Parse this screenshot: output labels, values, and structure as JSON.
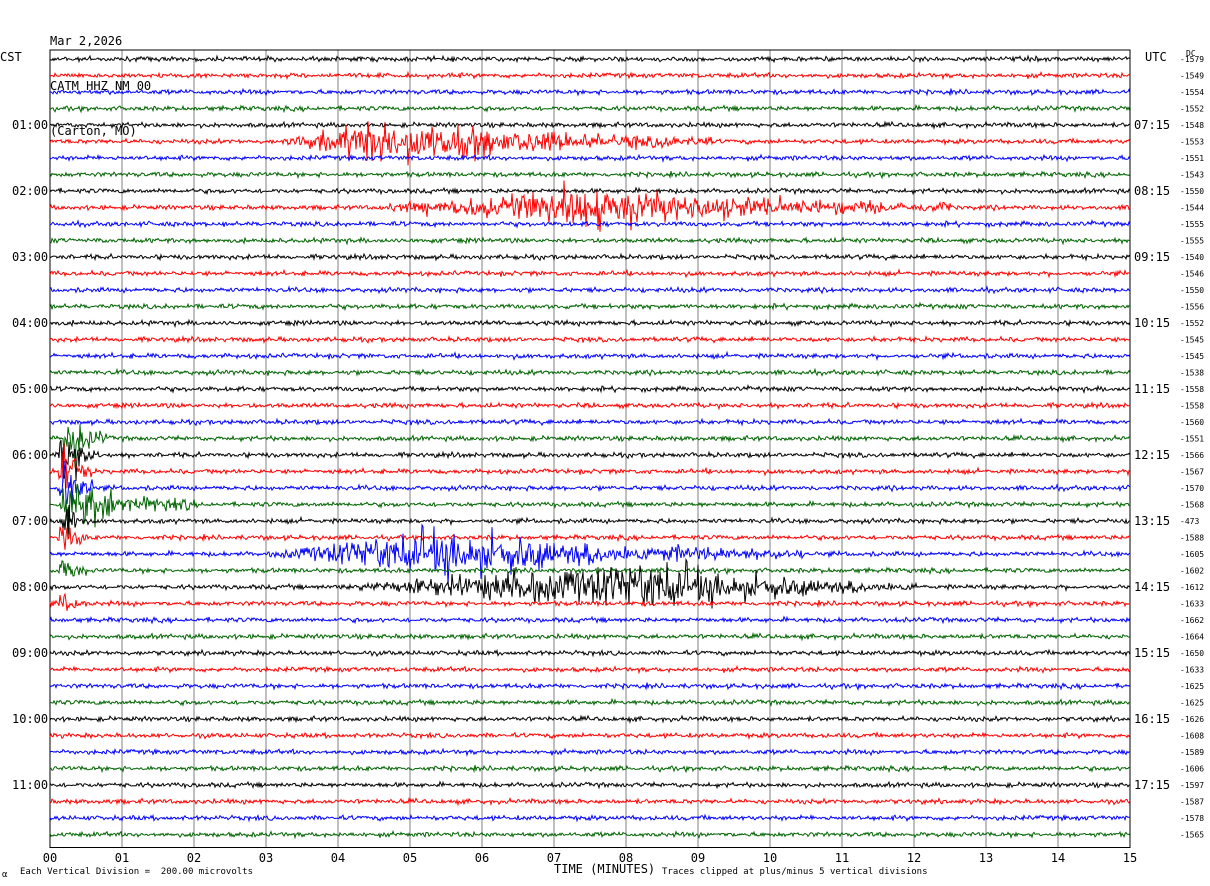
{
  "header": {
    "date": "Mar 2,2026",
    "station": "CATM HHZ NM 00",
    "location": "(Carton, MO)"
  },
  "left_tz": "CST",
  "right_tz": "UTC",
  "dc_label": "DC",
  "footer": {
    "scale_note": "Each Vertical Division =  200.00 microvolts",
    "clip_note": "Traces clipped at plus/minus 5 vertical divisions",
    "corner_mark": "α"
  },
  "colors": {
    "trace_cycle": [
      "#000000",
      "#ff0000",
      "#0000ff",
      "#006400"
    ],
    "grid": "#000000"
  },
  "chart_data": {
    "type": "line",
    "xlabel": "TIME (MINUTES)",
    "xlim": [
      0,
      15
    ],
    "x_ticks": [
      "00",
      "01",
      "02",
      "03",
      "04",
      "05",
      "06",
      "07",
      "08",
      "09",
      "10",
      "11",
      "12",
      "13",
      "14",
      "15"
    ],
    "left_hour_labels": [
      "01:00",
      "02:00",
      "03:00",
      "04:00",
      "05:00",
      "06:00",
      "07:00",
      "08:00",
      "09:00",
      "10:00",
      "11:00"
    ],
    "right_hour_labels": [
      "07:15",
      "08:15",
      "09:15",
      "10:15",
      "11:15",
      "12:15",
      "13:15",
      "14:15",
      "15:15",
      "16:15",
      "17:15"
    ],
    "dc_offsets": [
      "-1579",
      "-1549",
      "-1554",
      "-1552",
      "-1548",
      "-1553",
      "-1551",
      "-1543",
      "-1550",
      "-1544",
      "-1555",
      "-1555",
      "-1540",
      "-1546",
      "-1550",
      "-1556",
      "-1552",
      "-1545",
      "-1545",
      "-1538",
      "-1558",
      "-1558",
      "-1560",
      "-1551",
      "-1566",
      "-1567",
      "-1570",
      "-1568",
      "-473",
      "-1588",
      "-1605",
      "-1602",
      "-1612",
      "-1633",
      "-1662",
      "-1664",
      "-1650",
      "-1633",
      "-1625",
      "-1625",
      "-1626",
      "-1608",
      "-1589",
      "-1606",
      "-1597",
      "-1587",
      "-1578",
      "-1565"
    ],
    "trace_count": 48,
    "minutes_per_trace": 15,
    "events": [
      {
        "trace": 5,
        "start_min": 3.2,
        "end_min": 9.2,
        "peak_min": 5.0,
        "amp": 4.5
      },
      {
        "trace": 9,
        "start_min": 4.5,
        "end_min": 12.5,
        "peak_min": 7.6,
        "amp": 4.0
      },
      {
        "trace": 23,
        "start_min": 0.15,
        "end_min": 0.8,
        "peak_min": 0.25,
        "amp": 6.0
      },
      {
        "trace": 24,
        "start_min": 0.1,
        "end_min": 0.7,
        "peak_min": 0.2,
        "amp": 6.0
      },
      {
        "trace": 25,
        "start_min": 0.1,
        "end_min": 0.6,
        "peak_min": 0.2,
        "amp": 6.0
      },
      {
        "trace": 26,
        "start_min": 0.1,
        "end_min": 0.6,
        "peak_min": 0.2,
        "amp": 6.0
      },
      {
        "trace": 27,
        "start_min": 0.1,
        "end_min": 2.0,
        "peak_min": 0.3,
        "amp": 5.0
      },
      {
        "trace": 28,
        "start_min": 0.1,
        "end_min": 0.5,
        "peak_min": 0.2,
        "amp": 5.0
      },
      {
        "trace": 29,
        "start_min": 0.1,
        "end_min": 0.5,
        "peak_min": 0.2,
        "amp": 5.0
      },
      {
        "trace": 30,
        "start_min": 3.0,
        "end_min": 10.5,
        "peak_min": 5.5,
        "amp": 4.5
      },
      {
        "trace": 31,
        "start_min": 0.1,
        "end_min": 0.5,
        "peak_min": 0.2,
        "amp": 4.0
      },
      {
        "trace": 32,
        "start_min": 4.0,
        "end_min": 12.0,
        "peak_min": 8.5,
        "amp": 4.5
      },
      {
        "trace": 33,
        "start_min": 0.1,
        "end_min": 0.5,
        "peak_min": 0.2,
        "amp": 3.5
      }
    ]
  }
}
